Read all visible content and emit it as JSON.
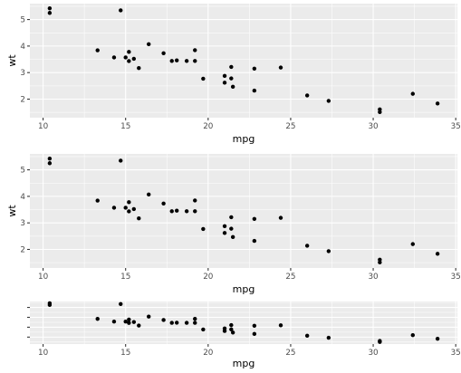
{
  "chart_data": [
    {
      "id": "top",
      "type": "scatter",
      "xlabel": "mpg",
      "ylabel": "wt",
      "xlim": [
        9.2,
        35.1
      ],
      "ylim": [
        1.3,
        5.6
      ],
      "xticks": [
        10,
        15,
        20,
        25,
        30,
        35
      ],
      "yticks": [
        2,
        3,
        4,
        5
      ],
      "show_y_tick_labels": true,
      "grid": true
    },
    {
      "id": "middle",
      "type": "scatter",
      "xlabel": "mpg",
      "ylabel": "wt",
      "xlim": [
        9.2,
        35.1
      ],
      "ylim": [
        1.3,
        5.6
      ],
      "xticks": [
        10,
        15,
        20,
        25,
        30,
        35
      ],
      "yticks": [
        2,
        3,
        4,
        5
      ],
      "show_y_tick_labels": true,
      "grid": true
    },
    {
      "id": "bottom",
      "type": "scatter",
      "xlabel": "mpg",
      "ylabel": "",
      "xlim": [
        9.2,
        35.1
      ],
      "ylim": [
        1.3,
        5.6
      ],
      "xticks": [
        10,
        15,
        20,
        25,
        30,
        35
      ],
      "yticks": [
        2,
        3,
        4,
        5
      ],
      "show_y_tick_labels": false,
      "grid": true
    }
  ],
  "points": {
    "x": [
      21.0,
      21.0,
      22.8,
      21.4,
      18.7,
      18.1,
      14.3,
      24.4,
      22.8,
      19.2,
      17.8,
      16.4,
      17.3,
      15.2,
      10.4,
      10.4,
      14.7,
      32.4,
      30.4,
      33.9,
      21.5,
      15.5,
      15.2,
      13.3,
      19.2,
      27.3,
      26.0,
      30.4,
      15.8,
      19.7,
      15.0,
      21.4
    ],
    "y": [
      2.62,
      2.875,
      2.32,
      3.215,
      3.44,
      3.46,
      3.57,
      3.19,
      3.15,
      3.44,
      3.44,
      4.07,
      3.73,
      3.78,
      5.25,
      5.424,
      5.345,
      2.2,
      1.615,
      1.835,
      2.465,
      3.52,
      3.435,
      3.84,
      3.845,
      1.935,
      2.14,
      1.513,
      3.17,
      2.77,
      3.57,
      2.78
    ]
  },
  "style": {
    "panel_background": "#ebebeb",
    "grid_color": "#ffffff",
    "point_color": "#000000",
    "tick_label_color": "#4d4d4d"
  }
}
